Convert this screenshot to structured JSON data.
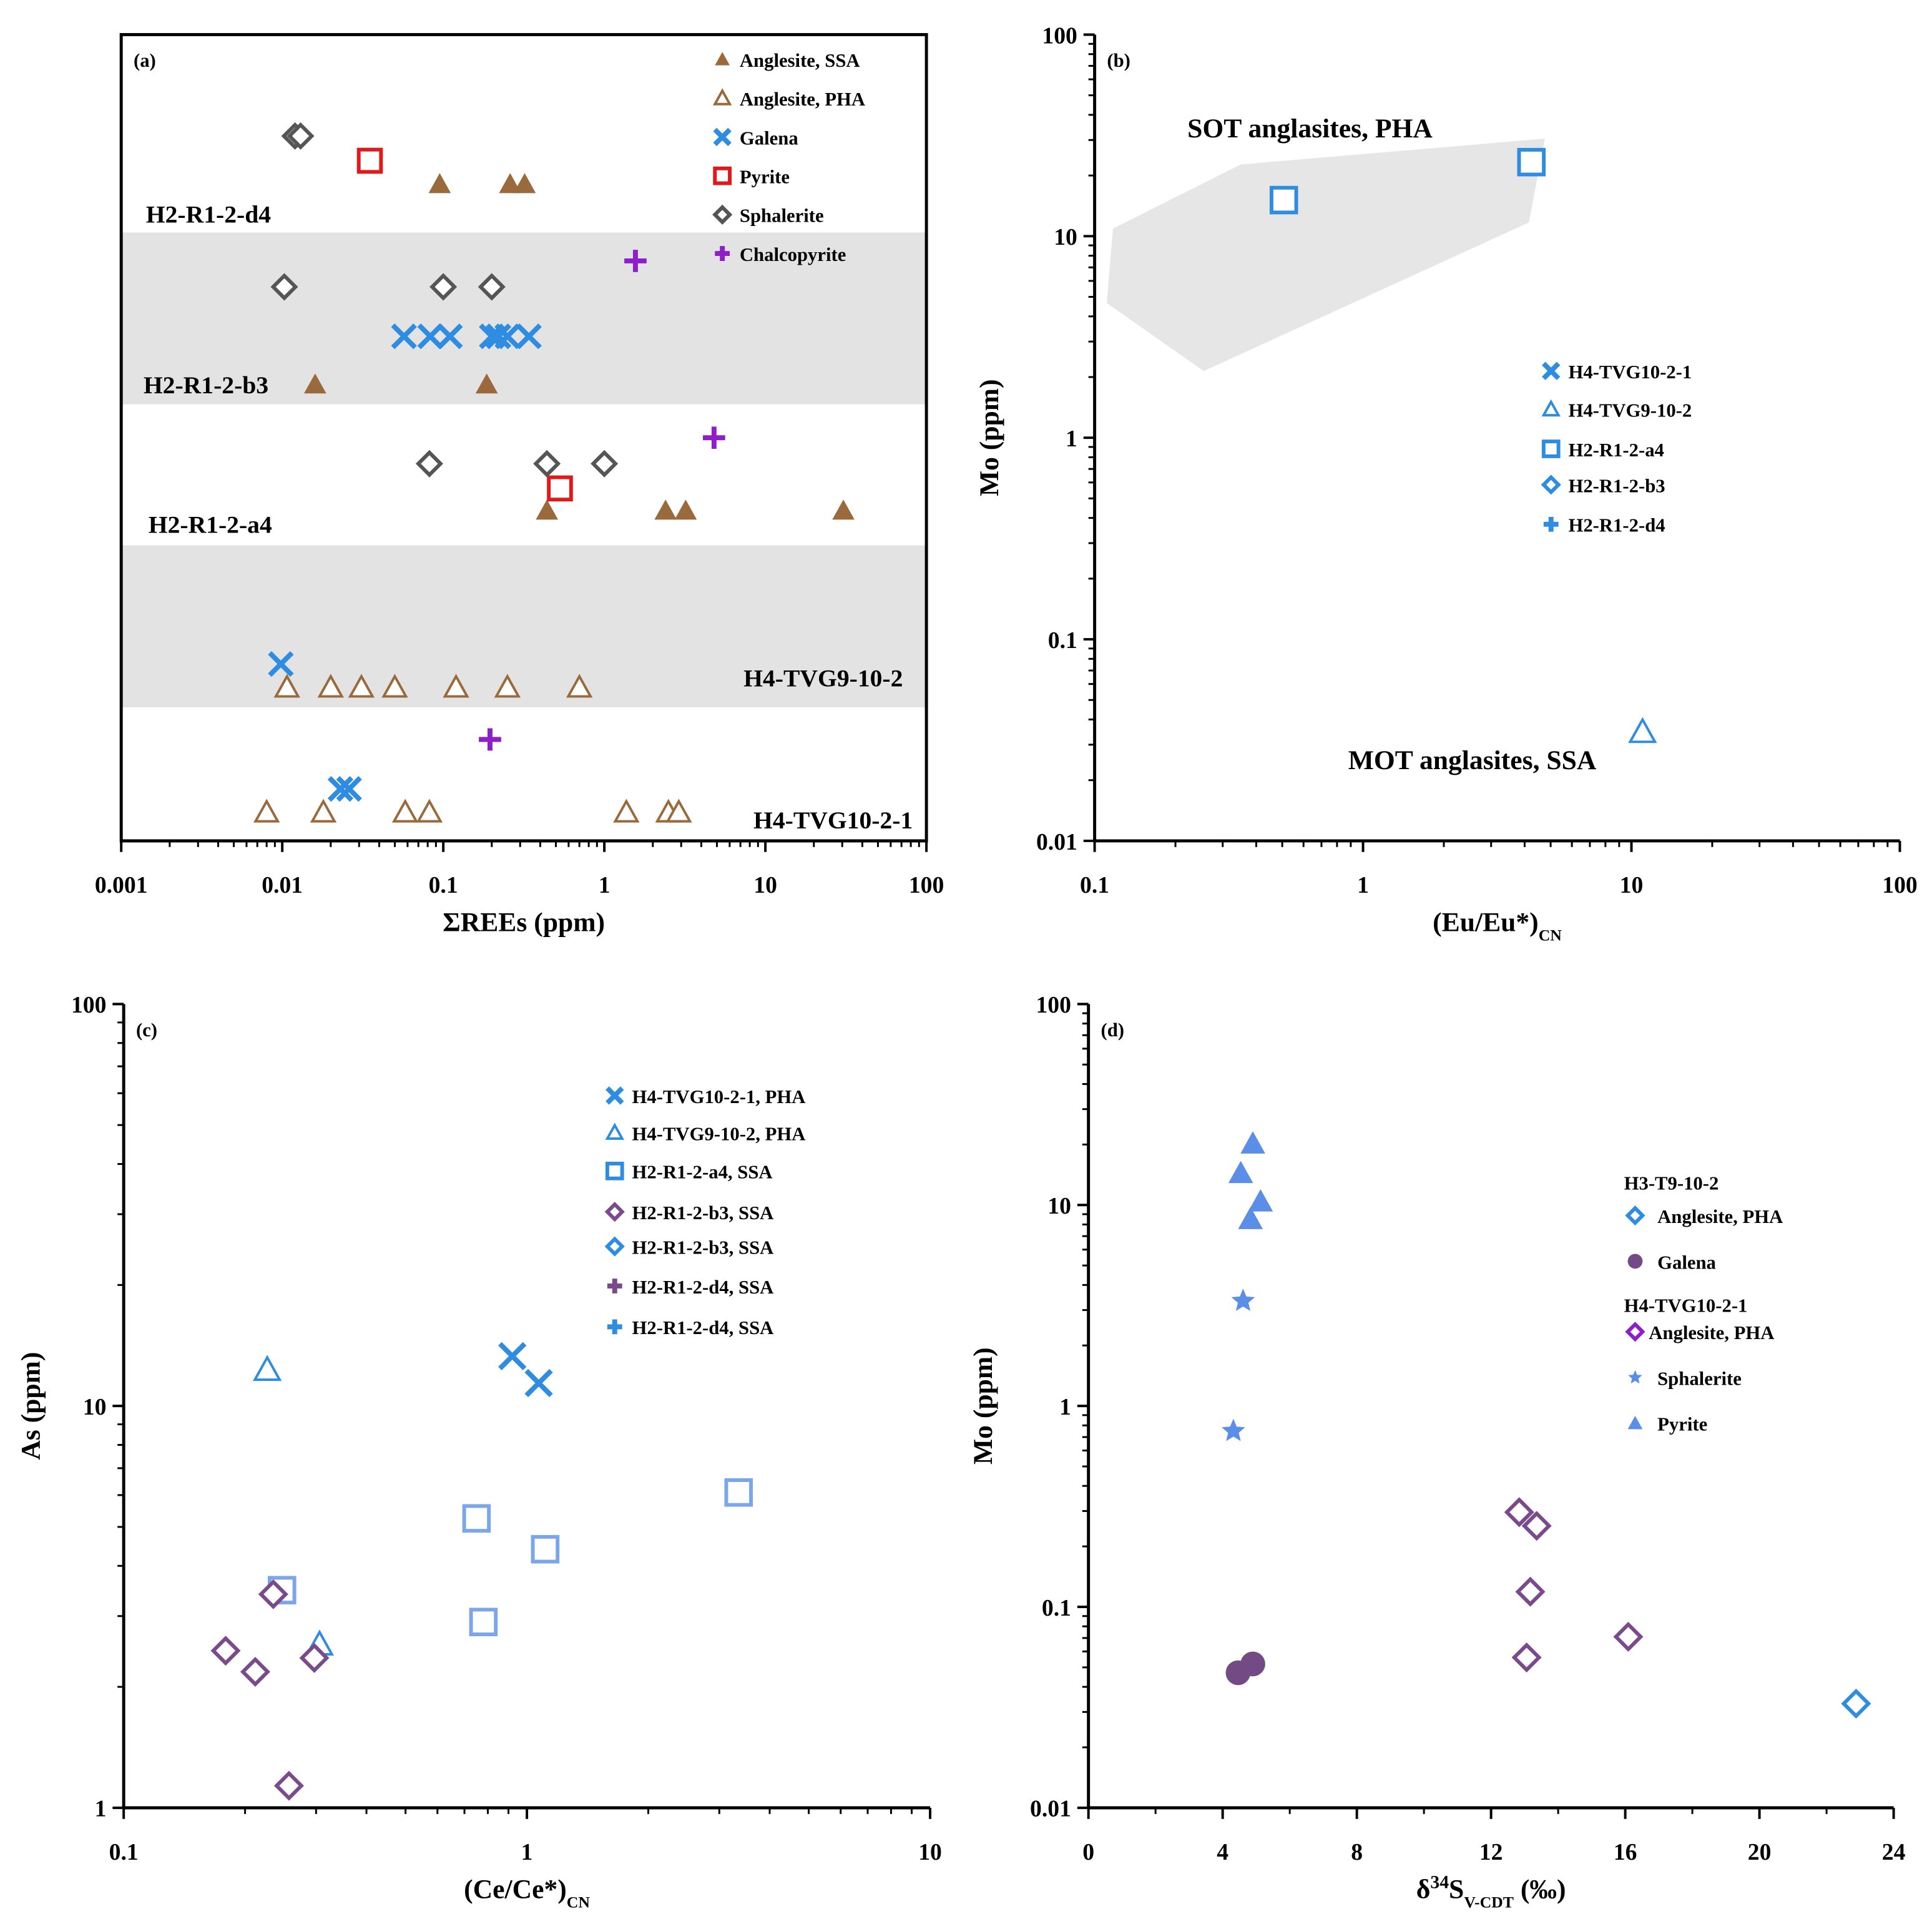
{
  "chart_data": [
    {
      "panel": "(a)",
      "type": "scatter",
      "xlabel": "ΣREEs (ppm)",
      "ylabel": "",
      "xscale": "log",
      "xlim": [
        0.001,
        100
      ],
      "xticks": [
        "0.001",
        "0.01",
        "0.1",
        "1",
        "10",
        "100"
      ],
      "rows": [
        "H2-R1-2-d4",
        "H2-R1-2-b3",
        "H2-R1-2-a4",
        "H4-TVG9-10-2",
        "H4-TVG10-2-1"
      ],
      "shaded_rows": [
        "H2-R1-2-b3",
        "H4-TVG9-10-2"
      ],
      "legend_position": "top-right",
      "series": [
        {
          "name": "Anglesite, SSA",
          "marker": "triangle-filled",
          "color": "#9b6a3c",
          "points": [
            {
              "row": "H2-R1-2-d4",
              "x": 0.095
            },
            {
              "row": "H2-R1-2-d4",
              "x": 0.26
            },
            {
              "row": "H2-R1-2-d4",
              "x": 0.32
            },
            {
              "row": "H2-R1-2-b3",
              "x": 0.016
            },
            {
              "row": "H2-R1-2-b3",
              "x": 0.186
            },
            {
              "row": "H2-R1-2-a4",
              "x": 0.44
            },
            {
              "row": "H2-R1-2-a4",
              "x": 2.4
            },
            {
              "row": "H2-R1-2-a4",
              "x": 3.2
            },
            {
              "row": "H2-R1-2-a4",
              "x": 30.5
            }
          ]
        },
        {
          "name": "Anglesite, PHA",
          "marker": "triangle-open",
          "color": "#9b6a3c",
          "points": [
            {
              "row": "H4-TVG9-10-2",
              "x": 0.0107
            },
            {
              "row": "H4-TVG9-10-2",
              "x": 0.02
            },
            {
              "row": "H4-TVG9-10-2",
              "x": 0.031
            },
            {
              "row": "H4-TVG9-10-2",
              "x": 0.05
            },
            {
              "row": "H4-TVG9-10-2",
              "x": 0.12
            },
            {
              "row": "H4-TVG9-10-2",
              "x": 0.25
            },
            {
              "row": "H4-TVG9-10-2",
              "x": 0.7
            },
            {
              "row": "H4-TVG10-2-1",
              "x": 0.008
            },
            {
              "row": "H4-TVG10-2-1",
              "x": 0.018
            },
            {
              "row": "H4-TVG10-2-1",
              "x": 0.058
            },
            {
              "row": "H4-TVG10-2-1",
              "x": 0.082
            },
            {
              "row": "H4-TVG10-2-1",
              "x": 1.37
            },
            {
              "row": "H4-TVG10-2-1",
              "x": 2.5
            },
            {
              "row": "H4-TVG10-2-1",
              "x": 2.9
            }
          ]
        },
        {
          "name": "Galena",
          "marker": "x",
          "color": "#2e8de0",
          "points": [
            {
              "row": "H2-R1-2-b3",
              "x": 0.057
            },
            {
              "row": "H2-R1-2-b3",
              "x": 0.083
            },
            {
              "row": "H2-R1-2-b3",
              "x": 0.11
            },
            {
              "row": "H2-R1-2-b3",
              "x": 0.2
            },
            {
              "row": "H2-R1-2-b3",
              "x": 0.22
            },
            {
              "row": "H2-R1-2-b3",
              "x": 0.25
            },
            {
              "row": "H2-R1-2-b3",
              "x": 0.34
            },
            {
              "row": "H4-TVG9-10-2",
              "x": 0.0098
            },
            {
              "row": "H4-TVG10-2-1",
              "x": 0.023
            },
            {
              "row": "H4-TVG10-2-1",
              "x": 0.026
            }
          ]
        },
        {
          "name": "Pyrite",
          "marker": "square-open",
          "color": "#e0191b",
          "points": [
            {
              "row": "H2-R1-2-d4",
              "x": 0.035
            },
            {
              "row": "H2-R1-2-a4",
              "x": 0.53
            }
          ]
        },
        {
          "name": "Sphalerite",
          "marker": "diamond-open",
          "color": "#555555",
          "points": [
            {
              "row": "H2-R1-2-d4",
              "x": 0.012
            },
            {
              "row": "H2-R1-2-d4",
              "x": 0.013
            },
            {
              "row": "H2-R1-2-b3",
              "x": 0.0103
            },
            {
              "row": "H2-R1-2-b3",
              "x": 0.1
            },
            {
              "row": "H2-R1-2-b3",
              "x": 0.2
            },
            {
              "row": "H2-R1-2-a4",
              "x": 0.082
            },
            {
              "row": "H2-R1-2-a4",
              "x": 0.44
            },
            {
              "row": "H2-R1-2-a4",
              "x": 1.0
            }
          ]
        },
        {
          "name": "Chalcopyrite",
          "marker": "plus",
          "color": "#8e1fc8",
          "points": [
            {
              "row": "H2-R1-2-b3",
              "x": 1.56
            },
            {
              "row": "H2-R1-2-a4",
              "x": 4.8
            },
            {
              "row": "H4-TVG10-2-1",
              "x": 0.195
            }
          ]
        }
      ]
    },
    {
      "panel": "(b)",
      "type": "scatter",
      "xlabel": "(Eu/Eu*)",
      "xlabel_sub": "CN",
      "ylabel": "Mo (ppm)",
      "xscale": "log",
      "yscale": "log",
      "xlim": [
        0.1,
        100
      ],
      "ylim": [
        0.01,
        100
      ],
      "xticks": [
        "0.1",
        "1",
        "10",
        "100"
      ],
      "yticks": [
        "0.01",
        "0.1",
        "1",
        "10",
        "100"
      ],
      "legend_position": "right",
      "field": {
        "label": "SOT anglasites, PHA",
        "color": "#e6e6e6",
        "polygon": [
          [
            0.117,
            10.9
          ],
          [
            0.35,
            22.7
          ],
          [
            4.76,
            30.5
          ],
          [
            4.15,
            11.7
          ],
          [
            0.255,
            2.14
          ],
          [
            0.111,
            4.66
          ]
        ]
      },
      "annotation": "MOT anglasites, SSA",
      "series": [
        {
          "name": "H4-TVG10-2-1",
          "marker": "x",
          "color": "#2e8de0",
          "points": []
        },
        {
          "name": "H4-TVG9-10-2",
          "marker": "triangle-open",
          "color": "#2e8de0",
          "points": [
            [
              11.0,
              0.0347
            ]
          ]
        },
        {
          "name": "H2-R1-2-a4",
          "marker": "square-open",
          "color": "#2e8de0",
          "points": [
            [
              0.507,
              15.1
            ],
            [
              4.24,
              23.3
            ]
          ]
        },
        {
          "name": "H2-R1-2-b3",
          "marker": "diamond-open",
          "color": "#2e8de0",
          "points": []
        },
        {
          "name": "H2-R1-2-d4",
          "marker": "plus",
          "color": "#2e8de0",
          "points": []
        }
      ]
    },
    {
      "panel": "(c)",
      "type": "scatter",
      "xlabel": "(Ce/Ce*)",
      "xlabel_sub": "CN",
      "ylabel": "As (ppm)",
      "xscale": "log",
      "yscale": "log",
      "xlim": [
        0.1,
        10
      ],
      "ylim": [
        1,
        100
      ],
      "xticks": [
        "0.1",
        "1",
        "10"
      ],
      "yticks": [
        "1",
        "10",
        "100"
      ],
      "legend_position": "top-right",
      "series": [
        {
          "name": "H4-TVG10-2-1, PHA",
          "marker": "x",
          "color": "#2e8de0",
          "points": [
            [
              0.92,
              13.3
            ],
            [
              1.07,
              11.4
            ]
          ]
        },
        {
          "name": "H4-TVG9-10-2, PHA",
          "marker": "triangle-open",
          "color": "#2e8de0",
          "points": [
            [
              0.227,
              12.3
            ],
            [
              0.306,
              2.55
            ]
          ]
        },
        {
          "name": "H2-R1-2-a4, SSA",
          "marker": "square-open",
          "color": "#2e8de0",
          "legend_color": "#2e8de0",
          "point_color": "#7ca6ea",
          "points": [
            [
              3.35,
              6.09
            ],
            [
              0.75,
              5.25
            ],
            [
              1.11,
              4.4
            ],
            [
              0.247,
              3.48
            ],
            [
              0.78,
              2.9
            ]
          ]
        },
        {
          "name": "H2-R1-2-b3, SSA",
          "marker": "diamond-open",
          "color": "#7a4b8a",
          "points": [
            [
              0.235,
              3.4
            ],
            [
              0.179,
              2.46
            ],
            [
              0.212,
              2.18
            ],
            [
              0.297,
              2.36
            ],
            [
              0.257,
              1.135
            ]
          ]
        },
        {
          "name": "H2-R1-2-b3, SSA",
          "marker": "diamond-open",
          "color": "#2e8de0",
          "points": []
        },
        {
          "name": "H2-R1-2-d4, SSA",
          "marker": "plus",
          "color": "#7a4b8a",
          "points": []
        },
        {
          "name": "H2-R1-2-d4, SSA",
          "marker": "plus",
          "color": "#2e8de0",
          "points": []
        }
      ]
    },
    {
      "panel": "(d)",
      "type": "scatter",
      "xlabel": "δ",
      "xlabel_sup": "34",
      "xlabel_mid": "S",
      "xlabel_sub": "V-CDT",
      "xlabel_end": " (‰)",
      "ylabel": "Mo (ppm)",
      "xscale": "linear",
      "yscale": "log",
      "xlim": [
        0,
        24
      ],
      "ylim": [
        0.01,
        100
      ],
      "xticks": [
        "0",
        "4",
        "8",
        "12",
        "16",
        "20",
        "24"
      ],
      "yticks": [
        "0.01",
        "0.1",
        "1",
        "10",
        "100"
      ],
      "legend_position": "right",
      "legend_groups": [
        "H3-T9-10-2",
        "H4-TVG10-2-1"
      ],
      "series": [
        {
          "group": "H3-T9-10-2",
          "name": "Anglesite, PHA",
          "marker": "diamond-open",
          "color": "#2e8de0",
          "points": [
            [
              22.88,
              0.033
            ]
          ]
        },
        {
          "group": "H3-T9-10-2",
          "name": "Galena",
          "marker": "circle",
          "color": "#744a85",
          "points": [
            [
              4.46,
              0.047
            ],
            [
              4.9,
              0.052
            ]
          ]
        },
        {
          "group": "H4-TVG10-2-1",
          "name": "Anglesite, PHA",
          "marker": "diamond-open",
          "color": "#7b4a8c",
          "legend_color": "#8e1fc8",
          "points": [
            [
              12.84,
              0.296
            ],
            [
              13.36,
              0.253
            ],
            [
              13.17,
              0.119
            ],
            [
              13.06,
              0.056
            ],
            [
              16.09,
              0.071
            ]
          ]
        },
        {
          "group": "H4-TVG10-2-1",
          "name": "Sphalerite",
          "marker": "star",
          "color": "#5b8ee6",
          "points": [
            [
              4.61,
              3.33
            ],
            [
              4.32,
              0.75
            ]
          ]
        },
        {
          "group": "H4-TVG10-2-1",
          "name": "Pyrite",
          "marker": "triangle-filled",
          "color": "#5b8ee6",
          "points": [
            [
              4.9,
              20.2
            ],
            [
              4.54,
              14.4
            ],
            [
              5.13,
              10.4
            ],
            [
              4.83,
              8.5
            ]
          ]
        }
      ]
    }
  ]
}
